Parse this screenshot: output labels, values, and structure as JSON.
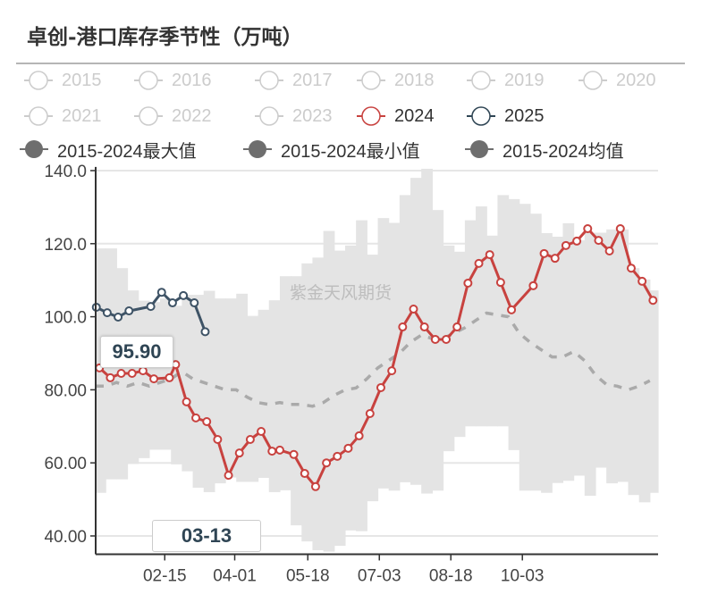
{
  "chart_data": {
    "type": "line",
    "title": "卓创-港口库存季节性（万吨）",
    "watermark": "紫金天风期货",
    "legend": [
      {
        "label": "2015",
        "color": "#cccccc",
        "active": false,
        "marker": "hollow-circle"
      },
      {
        "label": "2016",
        "color": "#cccccc",
        "active": false,
        "marker": "hollow-circle"
      },
      {
        "label": "2017",
        "color": "#cccccc",
        "active": false,
        "marker": "hollow-circle"
      },
      {
        "label": "2018",
        "color": "#cccccc",
        "active": false,
        "marker": "hollow-circle"
      },
      {
        "label": "2019",
        "color": "#cccccc",
        "active": false,
        "marker": "hollow-circle"
      },
      {
        "label": "2020",
        "color": "#cccccc",
        "active": false,
        "marker": "hollow-circle"
      },
      {
        "label": "2021",
        "color": "#cccccc",
        "active": false,
        "marker": "hollow-circle"
      },
      {
        "label": "2022",
        "color": "#cccccc",
        "active": false,
        "marker": "hollow-circle"
      },
      {
        "label": "2023",
        "color": "#cccccc",
        "active": false,
        "marker": "hollow-circle"
      },
      {
        "label": "2024",
        "color": "#c8423f",
        "active": true,
        "marker": "hollow-circle"
      },
      {
        "label": "2025",
        "color": "#2f4554",
        "active": true,
        "marker": "hollow-circle"
      },
      {
        "label": "2015-2024最大值",
        "color": "#6e6e6e",
        "active": true,
        "marker": "filled-circle"
      },
      {
        "label": "2015-2024最小值",
        "color": "#6e6e6e",
        "active": true,
        "marker": "filled-circle"
      },
      {
        "label": "2015-2024均值",
        "color": "#6e6e6e",
        "active": true,
        "marker": "filled-circle"
      }
    ],
    "xlim": [
      "01-01",
      "12-31"
    ],
    "ylim": [
      35,
      141
    ],
    "x_ticks": [
      "02-15",
      "04-01",
      "05-18",
      "07-03",
      "08-18",
      "10-03"
    ],
    "y_ticks": [
      "40.00",
      "60.00",
      "80.00",
      "100.0",
      "120.0",
      "140.0"
    ],
    "grid": true,
    "axis_pointer": {
      "x_label": "03-13",
      "y_label": "95.90"
    },
    "band": {
      "name_max": "2015-2024最大值",
      "name_min": "2015-2024最小值",
      "color": "#e4e4e4",
      "dates": [
        "01-01",
        "01-08",
        "01-15",
        "01-22",
        "01-29",
        "02-05",
        "02-12",
        "02-19",
        "02-26",
        "03-05",
        "03-12",
        "03-19",
        "03-26",
        "04-02",
        "04-09",
        "04-16",
        "04-23",
        "04-30",
        "05-07",
        "05-14",
        "05-21",
        "05-28",
        "06-04",
        "06-11",
        "06-18",
        "06-25",
        "07-02",
        "07-09",
        "07-16",
        "07-23",
        "07-30",
        "08-06",
        "08-13",
        "08-20",
        "08-27",
        "09-03",
        "09-10",
        "09-17",
        "09-24",
        "10-01",
        "10-08",
        "10-15",
        "10-22",
        "10-29",
        "11-05",
        "11-12",
        "11-19",
        "11-26",
        "12-03",
        "12-10",
        "12-17",
        "12-24"
      ],
      "max": [
        118.7,
        118.7,
        113.3,
        107.2,
        104.4,
        104,
        105,
        103,
        106,
        106,
        107.1,
        105,
        105,
        106.3,
        100,
        101.9,
        104.5,
        111.1,
        111.1,
        114.6,
        116.2,
        123.5,
        118.1,
        119.5,
        126.4,
        117,
        127,
        125.7,
        133.3,
        138,
        140.5,
        129.2,
        119.5,
        117.8,
        126.4,
        130.2,
        122.2,
        133.3,
        132.2,
        130.9,
        128.2,
        122.9,
        121.9,
        125.6,
        120.9,
        123,
        123,
        123.9,
        123.9,
        113.3,
        110.2,
        107.2
      ],
      "min": [
        51.8,
        55.5,
        55.5,
        59.7,
        61.3,
        63.6,
        63.6,
        59.6,
        57.7,
        53.2,
        52,
        54.4,
        56,
        54.8,
        54.8,
        55.9,
        52,
        52.5,
        42.9,
        38.5,
        36.1,
        35.7,
        37.3,
        41.5,
        41.3,
        49.5,
        53,
        52.4,
        54.7,
        54,
        51.6,
        52.4,
        63.2,
        67.1,
        70,
        70,
        70,
        70,
        63.5,
        52.4,
        52.4,
        51.8,
        54.5,
        55.1,
        56.5,
        51,
        58.7,
        54.4,
        54.8,
        51.2,
        49.2,
        51.8
      ]
    },
    "series": [
      {
        "name": "2015-2024均值",
        "color": "#aaaaaa",
        "style": "dashed",
        "dates": [
          "01-01",
          "01-08",
          "01-15",
          "01-22",
          "01-29",
          "02-05",
          "02-12",
          "02-19",
          "02-26",
          "03-05",
          "03-12",
          "03-19",
          "03-26",
          "04-02",
          "04-09",
          "04-16",
          "04-23",
          "04-30",
          "05-07",
          "05-14",
          "05-21",
          "05-28",
          "06-04",
          "06-11",
          "06-18",
          "06-25",
          "07-02",
          "07-09",
          "07-16",
          "07-23",
          "07-30",
          "08-06",
          "08-13",
          "08-20",
          "08-27",
          "09-03",
          "09-10",
          "09-17",
          "09-24",
          "10-01",
          "10-08",
          "10-15",
          "10-22",
          "10-29",
          "11-05",
          "11-12",
          "11-19",
          "11-26",
          "12-03",
          "12-10",
          "12-17",
          "12-24"
        ],
        "values": [
          81,
          81,
          82,
          81,
          82,
          81,
          82,
          83,
          85,
          83,
          82,
          81,
          80,
          80,
          78,
          76.5,
          76,
          76.5,
          76,
          76,
          75.5,
          76.5,
          78.5,
          80,
          80.5,
          83,
          86,
          88,
          90,
          93,
          95,
          94,
          94,
          95.5,
          97,
          99,
          101,
          100.5,
          100,
          95.5,
          93,
          91,
          89,
          89,
          90.5,
          88,
          84,
          81.5,
          81,
          80,
          81,
          82.5
        ]
      },
      {
        "name": "2024",
        "color": "#c8423f",
        "style": "solid",
        "dates": [
          "01-04",
          "01-11",
          "01-18",
          "01-25",
          "02-01",
          "02-08",
          "02-18",
          "02-22",
          "02-29",
          "03-07",
          "03-14",
          "03-21",
          "03-28",
          "04-04",
          "04-11",
          "04-18",
          "04-25",
          "04-30",
          "05-09",
          "05-16",
          "05-23",
          "05-30",
          "06-06",
          "06-13",
          "06-20",
          "06-27",
          "07-04",
          "07-11",
          "07-18",
          "07-25",
          "08-01",
          "08-08",
          "08-15",
          "08-22",
          "08-29",
          "09-05",
          "09-12",
          "09-19",
          "09-26",
          "10-10",
          "10-17",
          "10-24",
          "10-31",
          "11-07",
          "11-14",
          "11-21",
          "11-28",
          "12-05",
          "12-12",
          "12-19",
          "12-26"
        ],
        "values": [
          86.0,
          83.3,
          84.5,
          84.5,
          85.2,
          83.0,
          83.3,
          86.9,
          76.7,
          72.3,
          71.3,
          66.4,
          56.6,
          62.7,
          66.4,
          68.6,
          63.2,
          63.5,
          62.3,
          57.1,
          53.5,
          60.0,
          61.8,
          64.0,
          67.4,
          73.5,
          80.6,
          85.2,
          97.2,
          102.1,
          97.2,
          93.8,
          93.8,
          97.2,
          109.2,
          114.6,
          117.0,
          109.4,
          101.9,
          108.5,
          117.3,
          116.0,
          119.5,
          120.7,
          124.1,
          120.9,
          118.0,
          124.1,
          113.3,
          109.7,
          104.5
        ]
      },
      {
        "name": "2025",
        "color": "#3e5366",
        "style": "solid",
        "dates": [
          "01-02",
          "01-09",
          "01-16",
          "01-23",
          "02-06",
          "02-13",
          "02-20",
          "02-27",
          "03-06",
          "03-13"
        ],
        "values": [
          102.6,
          101.1,
          99.9,
          101.6,
          102.8,
          106.7,
          103.8,
          105.8,
          103.8,
          95.9
        ]
      }
    ]
  }
}
